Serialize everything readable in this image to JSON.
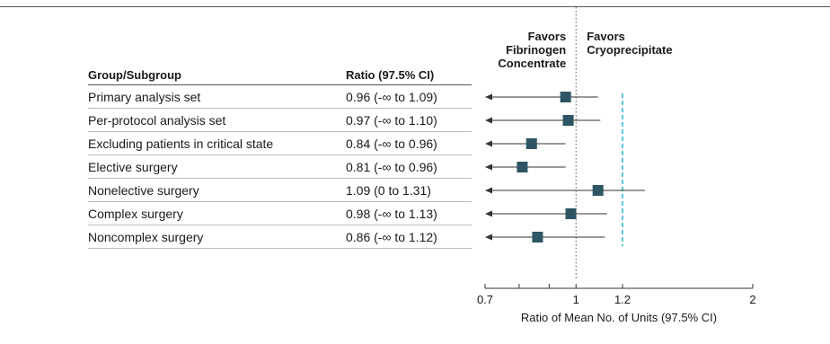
{
  "headers": {
    "group": "Group/Subgroup",
    "ratio": "Ratio (97.5% CI)",
    "favors_left": [
      "Favors",
      "Fibrinogen",
      "Concentrate"
    ],
    "favors_right": [
      "Favors",
      "Cryoprecipitate"
    ]
  },
  "chart_data": {
    "type": "forest",
    "xlabel": "Ratio of Mean No. of Units (97.5% CI)",
    "xlim": [
      0.7,
      2
    ],
    "x_scale": "log",
    "ticks": [
      {
        "value": 0.7,
        "label": "0.7"
      },
      {
        "value": 0.8,
        "label": ""
      },
      {
        "value": 0.9,
        "label": ""
      },
      {
        "value": 1.0,
        "label": "1"
      },
      {
        "value": 1.2,
        "label": "1.2"
      },
      {
        "value": 2.0,
        "label": "2"
      }
    ],
    "reference_line": 1.0,
    "margin_line": 1.2,
    "marker_color": "#2d5563",
    "margin_color": "#29b6c8",
    "rows": [
      {
        "group": "Primary analysis set",
        "ratio_text": "0.96 (-∞ to 1.09)",
        "estimate": 0.96,
        "lower": null,
        "upper": 1.09
      },
      {
        "group": "Per-protocol analysis set",
        "ratio_text": "0.97 (-∞ to 1.10)",
        "estimate": 0.97,
        "lower": null,
        "upper": 1.1
      },
      {
        "group": "Excluding patients in critical state",
        "ratio_text": "0.84 (-∞ to 0.96)",
        "estimate": 0.84,
        "lower": null,
        "upper": 0.96
      },
      {
        "group": "Elective surgery",
        "ratio_text": "0.81 (-∞ to 0.96)",
        "estimate": 0.81,
        "lower": null,
        "upper": 0.96
      },
      {
        "group": "Nonelective surgery",
        "ratio_text": "1.09 (0 to 1.31)",
        "estimate": 1.09,
        "lower": 0,
        "upper": 1.31
      },
      {
        "group": "Complex surgery",
        "ratio_text": "0.98 (-∞ to 1.13)",
        "estimate": 0.98,
        "lower": null,
        "upper": 1.13
      },
      {
        "group": "Noncomplex surgery",
        "ratio_text": "0.86 (-∞ to 1.12)",
        "estimate": 0.86,
        "lower": null,
        "upper": 1.12
      }
    ]
  }
}
